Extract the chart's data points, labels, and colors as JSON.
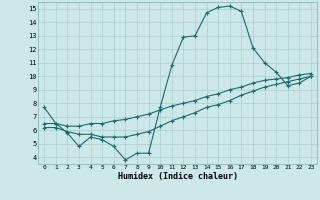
{
  "xlabel": "Humidex (Indice chaleur)",
  "bg_color": "#cce8e8",
  "grid_color": "#aacfcf",
  "line_color": "#1a6b6b",
  "xlim": [
    -0.5,
    23.5
  ],
  "ylim": [
    3.5,
    15.5
  ],
  "xticks": [
    0,
    1,
    2,
    3,
    4,
    5,
    6,
    7,
    8,
    9,
    10,
    11,
    12,
    13,
    14,
    15,
    16,
    17,
    18,
    19,
    20,
    21,
    22,
    23
  ],
  "yticks": [
    4,
    5,
    6,
    7,
    8,
    9,
    10,
    11,
    12,
    13,
    14,
    15
  ],
  "line1_x": [
    0,
    1,
    2,
    3,
    4,
    5,
    6,
    7,
    8,
    9,
    10,
    11,
    12,
    13,
    14,
    15,
    16,
    17,
    18,
    19,
    20,
    21,
    22,
    23
  ],
  "line1_y": [
    7.7,
    6.5,
    5.8,
    4.8,
    5.5,
    5.3,
    4.8,
    3.8,
    4.3,
    4.3,
    7.7,
    10.8,
    12.9,
    13.0,
    14.7,
    15.1,
    15.2,
    14.8,
    12.1,
    11.0,
    10.3,
    9.3,
    9.5,
    10.0
  ],
  "line2_x": [
    0,
    1,
    2,
    3,
    4,
    5,
    6,
    7,
    8,
    9,
    10,
    11,
    12,
    13,
    14,
    15,
    16,
    17,
    18,
    19,
    20,
    21,
    22,
    23
  ],
  "line2_y": [
    6.5,
    6.5,
    6.3,
    6.3,
    6.5,
    6.5,
    6.7,
    6.8,
    7.0,
    7.2,
    7.5,
    7.8,
    8.0,
    8.2,
    8.5,
    8.7,
    9.0,
    9.2,
    9.5,
    9.7,
    9.8,
    9.9,
    10.1,
    10.2
  ],
  "line3_x": [
    0,
    1,
    2,
    3,
    4,
    5,
    6,
    7,
    8,
    9,
    10,
    11,
    12,
    13,
    14,
    15,
    16,
    17,
    18,
    19,
    20,
    21,
    22,
    23
  ],
  "line3_y": [
    6.2,
    6.2,
    5.9,
    5.7,
    5.7,
    5.5,
    5.5,
    5.5,
    5.7,
    5.9,
    6.3,
    6.7,
    7.0,
    7.3,
    7.7,
    7.9,
    8.2,
    8.6,
    8.9,
    9.2,
    9.4,
    9.6,
    9.8,
    10.0
  ]
}
